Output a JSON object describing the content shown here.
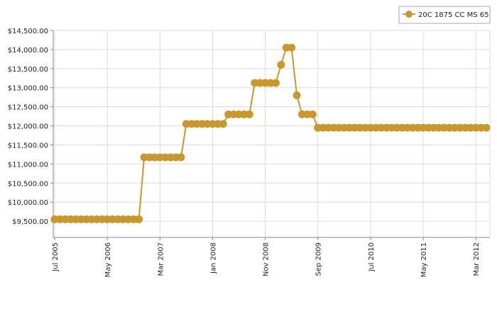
{
  "chart_data": {
    "type": "line",
    "x": [
      "2005-07",
      "2005-08",
      "2005-09",
      "2005-10",
      "2005-11",
      "2005-12",
      "2006-01",
      "2006-02",
      "2006-03",
      "2006-04",
      "2006-05",
      "2006-06",
      "2006-07",
      "2006-08",
      "2006-09",
      "2006-10",
      "2006-11",
      "2006-12",
      "2007-01",
      "2007-02",
      "2007-03",
      "2007-04",
      "2007-05",
      "2007-06",
      "2007-07",
      "2007-08",
      "2007-09",
      "2007-10",
      "2007-11",
      "2007-12",
      "2008-01",
      "2008-02",
      "2008-03",
      "2008-04",
      "2008-05",
      "2008-06",
      "2008-07",
      "2008-08",
      "2008-09",
      "2008-10",
      "2008-11",
      "2008-12",
      "2009-01",
      "2009-02",
      "2009-03",
      "2009-04",
      "2009-05",
      "2009-06",
      "2009-07",
      "2009-08",
      "2009-09",
      "2009-10",
      "2009-11",
      "2009-12",
      "2010-01",
      "2010-02",
      "2010-03",
      "2010-04",
      "2010-05",
      "2010-06",
      "2010-07",
      "2010-08",
      "2010-09",
      "2010-10",
      "2010-11",
      "2010-12",
      "2011-01",
      "2011-02",
      "2011-03",
      "2011-04",
      "2011-05",
      "2011-06",
      "2011-07",
      "2011-08",
      "2011-09",
      "2011-10",
      "2011-11",
      "2011-12",
      "2012-01",
      "2012-02",
      "2012-03",
      "2012-04",
      "2012-05"
    ],
    "series": [
      {
        "name": "20C 1875 CC MS 65",
        "color": "#c8972e",
        "values": [
          9550,
          9550,
          9550,
          9550,
          9550,
          9550,
          9550,
          9550,
          9550,
          9550,
          9550,
          9550,
          9550,
          9550,
          9550,
          9550,
          9550,
          11175,
          11175,
          11175,
          11175,
          11175,
          11175,
          11175,
          11175,
          12050,
          12050,
          12050,
          12050,
          12050,
          12050,
          12050,
          12050,
          12300,
          12300,
          12300,
          12300,
          12300,
          13125,
          13125,
          13125,
          13125,
          13125,
          13600,
          14050,
          14050,
          12800,
          12300,
          12300,
          12300,
          11950,
          11950,
          11950,
          11950,
          11950,
          11950,
          11950,
          11950,
          11950,
          11950,
          11950,
          11950,
          11950,
          11950,
          11950,
          11950,
          11950,
          11950,
          11950,
          11950,
          11950,
          11950,
          11950,
          11950,
          11950,
          11950,
          11950,
          11950,
          11950,
          11950,
          11950,
          11950,
          11950
        ]
      }
    ],
    "xticks": [
      {
        "value": "2005-07",
        "label": "Jul 2005"
      },
      {
        "value": "2006-05",
        "label": "May 2006"
      },
      {
        "value": "2007-03",
        "label": "Mar 2007"
      },
      {
        "value": "2008-01",
        "label": "Jan 2008"
      },
      {
        "value": "2008-11",
        "label": "Nov 2008"
      },
      {
        "value": "2009-09",
        "label": "Sep 2009"
      },
      {
        "value": "2010-07",
        "label": "Jul 2010"
      },
      {
        "value": "2011-05",
        "label": "May 2011"
      },
      {
        "value": "2012-03",
        "label": "Mar 2012"
      }
    ],
    "ylim": [
      9075,
      14500
    ],
    "yticks": [
      {
        "value": 9500,
        "label": "$9,500.00"
      },
      {
        "value": 10000,
        "label": "$10,000.00"
      },
      {
        "value": 10500,
        "label": "$10,500.00"
      },
      {
        "value": 11000,
        "label": "$11,000.00"
      },
      {
        "value": 11500,
        "label": "$11,500.00"
      },
      {
        "value": 12000,
        "label": "$12,000.00"
      },
      {
        "value": 12500,
        "label": "$12,500.00"
      },
      {
        "value": 13000,
        "label": "$13,000.00"
      },
      {
        "value": 13500,
        "label": "$13,500.00"
      },
      {
        "value": 14000,
        "label": "$14,000.00"
      },
      {
        "value": 14500,
        "label": "$14,500.00"
      }
    ],
    "grid": true,
    "legend": "top-right"
  }
}
